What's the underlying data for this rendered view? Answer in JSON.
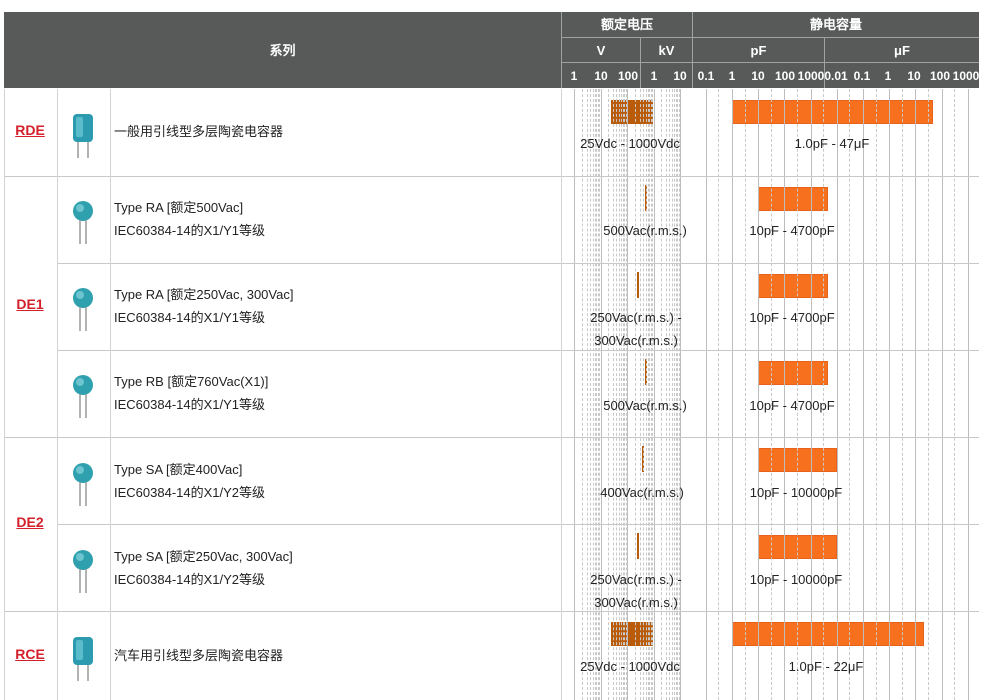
{
  "header": {
    "series_label": "系列",
    "voltage": {
      "title": "额定电压",
      "unit_v": "V",
      "unit_kv": "kV",
      "ticks": [
        "1",
        "10",
        "100",
        "1",
        "10"
      ]
    },
    "capacitance": {
      "title": "静电容量",
      "unit_pf": "pF",
      "unit_uf": "μF",
      "ticks": [
        "0.1",
        "1",
        "10",
        "100",
        "1000",
        "0.01",
        "0.1",
        "1",
        "10",
        "100",
        "1000"
      ]
    }
  },
  "groups": [
    {
      "name": "RDE"
    },
    {
      "name": "DE1"
    },
    {
      "name": "DE2"
    },
    {
      "name": "RCE"
    }
  ],
  "rows": [
    {
      "group": 0,
      "desc_line1": "一般用引线型多层陶瓷电容器",
      "desc_line2": "",
      "voltage_label_line1": "25Vdc - 1000Vdc",
      "voltage_label_line2": "",
      "capacitance_label": "1.0pF - 47μF",
      "thumb_icon": "dip-capacitor-icon",
      "voltage_range": [
        25,
        1000
      ],
      "capacitance_range_pf": [
        1,
        47000000
      ]
    },
    {
      "group": 1,
      "desc_line1": "Type RA [额定500Vac]",
      "desc_line2": "IEC60384-14的X1/Y1等级",
      "voltage_label_line1": "500Vac(r.m.s.)",
      "voltage_label_line2": "",
      "capacitance_label": "10pF - 4700pF",
      "thumb_icon": "disc-capacitor-icon",
      "voltage_range": [
        500,
        500
      ],
      "capacitance_range_pf": [
        10,
        4700
      ]
    },
    {
      "group": 1,
      "desc_line1": "Type RA [额定250Vac, 300Vac]",
      "desc_line2": "IEC60384-14的X1/Y1等级",
      "voltage_label_line1": "250Vac(r.m.s.) -",
      "voltage_label_line2": "300Vac(r.m.s.)",
      "capacitance_label": "10pF - 4700pF",
      "thumb_icon": "disc-capacitor-icon",
      "voltage_range": [
        250,
        300
      ],
      "capacitance_range_pf": [
        10,
        4700
      ]
    },
    {
      "group": 1,
      "desc_line1": "Type RB [额定760Vac(X1)]",
      "desc_line2": "IEC60384-14的X1/Y1等级",
      "voltage_label_line1": "500Vac(r.m.s.)",
      "voltage_label_line2": "",
      "capacitance_label": "10pF - 4700pF",
      "thumb_icon": "disc-capacitor-icon",
      "voltage_range": [
        500,
        500
      ],
      "capacitance_range_pf": [
        10,
        4700
      ]
    },
    {
      "group": 2,
      "desc_line1": "Type SA [额定400Vac]",
      "desc_line2": "IEC60384-14的X1/Y2等级",
      "voltage_label_line1": "400Vac(r.m.s.)",
      "voltage_label_line2": "",
      "capacitance_label": "10pF - 10000pF",
      "thumb_icon": "disc-capacitor-icon",
      "voltage_range": [
        400,
        400
      ],
      "capacitance_range_pf": [
        10,
        10000
      ]
    },
    {
      "group": 2,
      "desc_line1": "Type SA [额定250Vac, 300Vac]",
      "desc_line2": "IEC60384-14的X1/Y2等级",
      "voltage_label_line1": "250Vac(r.m.s.) -",
      "voltage_label_line2": "300Vac(r.m.s.)",
      "capacitance_label": "10pF - 10000pF",
      "thumb_icon": "disc-capacitor-icon",
      "voltage_range": [
        250,
        300
      ],
      "capacitance_range_pf": [
        10,
        10000
      ]
    },
    {
      "group": 3,
      "desc_line1": "汽车用引线型多层陶瓷电容器",
      "desc_line2": "",
      "voltage_label_line1": "25Vdc - 1000Vdc",
      "voltage_label_line2": "",
      "capacitance_label": "1.0pF - 22μF",
      "thumb_icon": "dip-capacitor-icon",
      "voltage_range": [
        25,
        1000
      ],
      "capacitance_range_pf": [
        1,
        22000000
      ]
    }
  ],
  "colors": {
    "header_bg": "#575a59",
    "voltage_bar": "#b95b08",
    "capacitance_bar": "#f7701d",
    "link": "#d3202b"
  }
}
